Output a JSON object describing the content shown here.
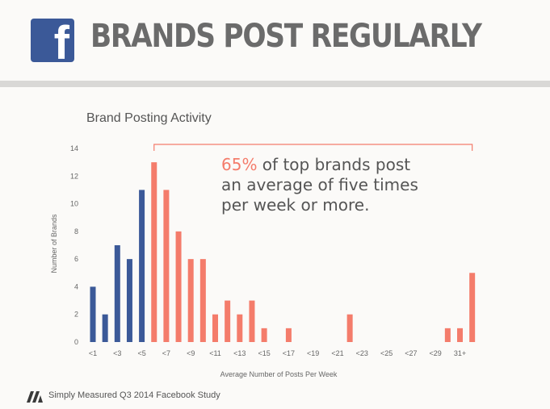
{
  "header": {
    "logo_letter": "f",
    "title": "BRANDS POST REGULARLY"
  },
  "callout": {
    "highlight": "65%",
    "line1_rest": " of top brands post",
    "line2": "an average of five times",
    "line3": "per week or more."
  },
  "footer": {
    "text": "Simply Measured Q3 2014 Facebook Study"
  },
  "colors": {
    "blue": "#3b5998",
    "coral": "#f47c6b"
  },
  "chart_data": {
    "type": "bar",
    "title": "Brand Posting Activity",
    "xlabel": "Average Number of Posts Per Week",
    "ylabel": "Number of Brands",
    "ylim": [
      0,
      14
    ],
    "y_ticks": [
      0,
      2,
      4,
      6,
      8,
      10,
      12,
      14
    ],
    "x_tick_labels": [
      "<1",
      "<3",
      "<5",
      "<7",
      "<9",
      "<11",
      "<13",
      "<15",
      "<17",
      "<19",
      "<21",
      "<23",
      "<25",
      "<27",
      "<29",
      "31+"
    ],
    "values": [
      4,
      2,
      7,
      6,
      11,
      13,
      11,
      8,
      6,
      6,
      2,
      3,
      2,
      3,
      1,
      0,
      1,
      0,
      0,
      0,
      0,
      2,
      0,
      0,
      0,
      0,
      0,
      0,
      0,
      1,
      1,
      5
    ],
    "highlight_start_index": 5,
    "grid": false
  }
}
